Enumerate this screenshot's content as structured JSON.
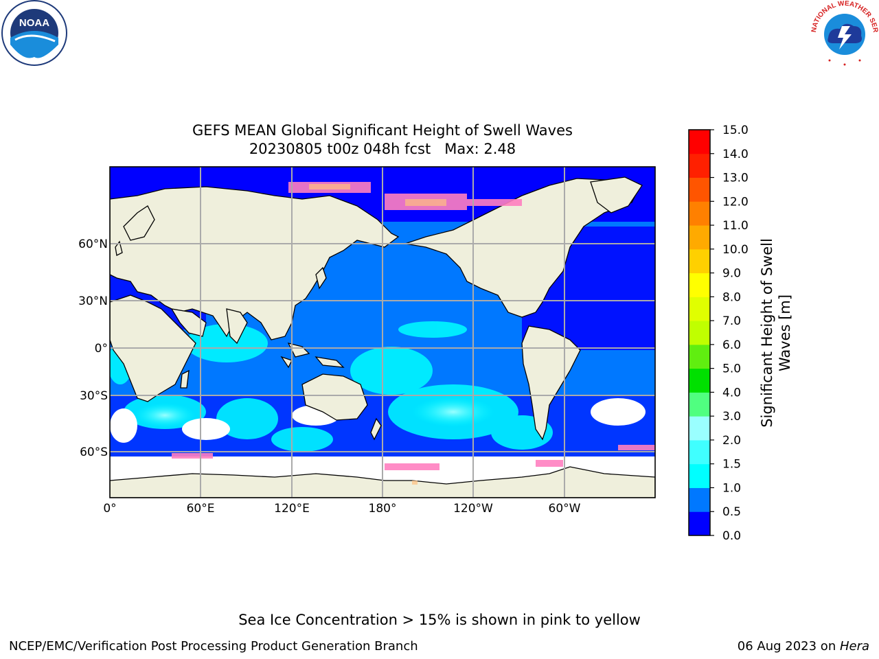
{
  "title": "GEFS MEAN Global Significant Height of Swell Waves",
  "subtitle": "20230805 t00z 048h fcst   Max: 2.48",
  "colorbar": {
    "label_line1": "Significant Height of Swell",
    "label_line2": "Waves [m]",
    "ticks": [
      "0.0",
      "0.5",
      "1.0",
      "1.5",
      "2.0",
      "3.0",
      "4.0",
      "5.0",
      "6.0",
      "7.0",
      "8.0",
      "9.0",
      "10.0",
      "11.0",
      "12.0",
      "13.0",
      "14.0",
      "15.0"
    ],
    "colors": [
      "#0000ff",
      "#0078ff",
      "#00ffff",
      "#40ffff",
      "#9affff",
      "#50ff80",
      "#00e000",
      "#60ee10",
      "#c0ff00",
      "#e0ff00",
      "#ffff00",
      "#ffd000",
      "#ffaa00",
      "#ff8000",
      "#ff5500",
      "#ff2000",
      "#ff0000"
    ]
  },
  "map": {
    "lat_labels": [
      "60°N",
      "30°N",
      "0°",
      "30°S",
      "60°S"
    ],
    "lon_labels": [
      "0°",
      "60°E",
      "120°E",
      "180°",
      "120°W",
      "60°W"
    ],
    "land_color": "#efefdc",
    "ice_color": "#ff80c0",
    "ocean_low_color": "#0000ff",
    "ocean_mid_color": "#0078ff",
    "ocean_high_color": "#00ffff"
  },
  "note": "Sea Ice Concentration > 15% is shown in pink to yellow",
  "footer": {
    "left": "NCEP/EMC/Verification Post Processing Product Generation Branch",
    "date": "06 Aug 2023 on ",
    "host": "Hera"
  },
  "logos": {
    "noaa_text": "NOAA",
    "nws_text": "NATIONAL WEATHER SERVICE"
  }
}
